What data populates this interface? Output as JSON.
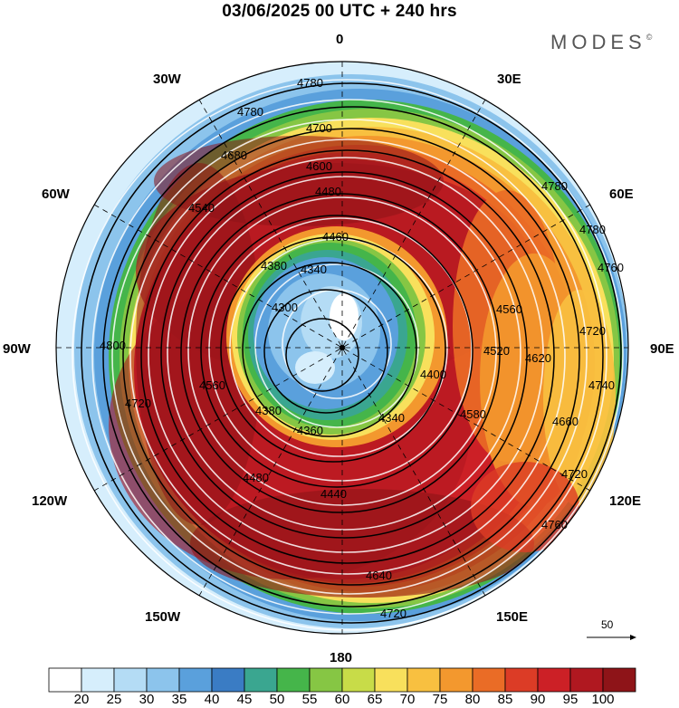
{
  "title": "03/06/2025  00 UTC  + 240 hrs",
  "brand": "MODES",
  "brand_mark": "©",
  "longitude_labels": {
    "top": "0",
    "nne": "30E",
    "ene": "60E",
    "east": "90E",
    "ese": "120E",
    "sse": "150E",
    "bottom": "180",
    "ssw": "150W",
    "wsw": "120W",
    "west": "90W",
    "wnw": "60W",
    "nnw": "30W"
  },
  "contour_labels": {
    "c4300": "4300",
    "c4340": "4340",
    "c4360": "4360",
    "c4380": "4380",
    "c4400": "4400",
    "c4440": "4440",
    "c4460": "4460",
    "c4480": "4480",
    "c4520": "4520",
    "c4540": "4540",
    "c4560": "4560",
    "c4580": "4580",
    "c4600": "4600",
    "c4620": "4620",
    "c4640": "4640",
    "c4660": "4660",
    "c4680": "4680",
    "c4700": "4700",
    "c4720": "4720",
    "c4740": "4740",
    "c4760": "4760",
    "c4780": "4780",
    "c4800": "4800"
  },
  "reference_vector": {
    "label": "50"
  },
  "colorbar": {
    "labels": [
      "20",
      "25",
      "30",
      "35",
      "40",
      "45",
      "50",
      "55",
      "60",
      "65",
      "70",
      "75",
      "80",
      "85",
      "90",
      "95",
      "100"
    ],
    "colors": [
      "#ffffff",
      "#d6eefc",
      "#b4dcf5",
      "#8cc4ec",
      "#5aa0dc",
      "#3a7cc4",
      "#3aa690",
      "#45b54a",
      "#86c644",
      "#c8dc48",
      "#f8e05c",
      "#f8c040",
      "#f3982e",
      "#ea6c26",
      "#dc3c26",
      "#cc2026",
      "#b01820",
      "#8e1418"
    ]
  },
  "map_colors": {
    "outer_blue": "#8cc4ec",
    "ring_green": "#45b54a",
    "ring_yellow": "#f8e05c",
    "ring_orange": "#f3982e",
    "jet_red": "#cc2026",
    "jet_dark": "#9e161c",
    "core_blue": "#5aa0dc",
    "core_light": "#d6eefc"
  }
}
